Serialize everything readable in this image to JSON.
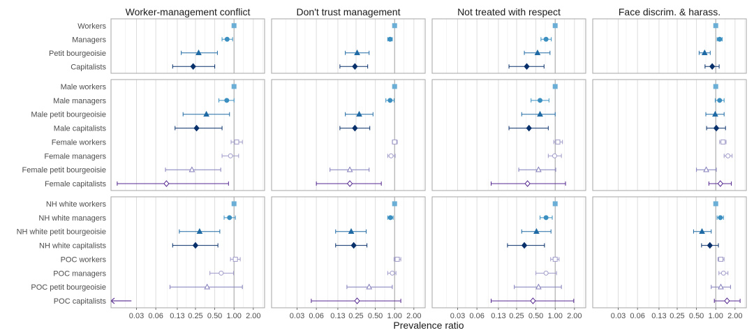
{
  "chart_data": {
    "type": "forest",
    "xlabel": "Prevalence ratio",
    "x_scale": "log",
    "xlim": [
      0.012,
      3.0
    ],
    "x_ticks": [
      {
        "value": 0.03,
        "label": "0.03"
      },
      {
        "value": 0.06,
        "label": "0.06"
      },
      {
        "value": 0.13,
        "label": "0.13"
      },
      {
        "value": 0.25,
        "label": "0.25"
      },
      {
        "value": 0.5,
        "label": "0.50"
      },
      {
        "value": 1.0,
        "label": "1.00"
      },
      {
        "value": 2.0,
        "label": "2.00"
      }
    ],
    "reference_line": 1.0,
    "grid": true,
    "colors": {
      "Workers": "#6baed6",
      "Managers": "#3a8fc0",
      "Petit bourgeoisie": "#1f6aa5",
      "Capitalists": "#08306b",
      "female_light": "#9e9ac8",
      "female_mid": "#807dba",
      "female_dark": "#54278f",
      "female_darkest": "#3f007d"
    },
    "outcomes": [
      "Worker-management conflict",
      "Don't trust management",
      "Not treated with respect",
      "Face discrim. & harass."
    ],
    "panels": [
      {
        "name": "overall",
        "groups": [
          {
            "label": "Workers",
            "shape": "square-filled",
            "color": "#6baed6",
            "estimates": [
              [
                1.0,
                1.0,
                1.0
              ],
              [
                1.0,
                1.0,
                1.0
              ],
              [
                1.0,
                1.0,
                1.0
              ],
              [
                1.0,
                1.0,
                1.0
              ]
            ]
          },
          {
            "label": "Managers",
            "shape": "circle-filled",
            "color": "#3a8fc0",
            "estimates": [
              [
                0.78,
                0.65,
                0.95
              ],
              [
                0.85,
                0.78,
                0.92
              ],
              [
                0.72,
                0.6,
                0.87
              ],
              [
                1.15,
                1.05,
                1.26
              ]
            ]
          },
          {
            "label": "Petit bourgeoisie",
            "shape": "triangle-filled",
            "color": "#1f6aa5",
            "estimates": [
              [
                0.28,
                0.15,
                0.55
              ],
              [
                0.26,
                0.17,
                0.4
              ],
              [
                0.53,
                0.33,
                0.83
              ],
              [
                0.67,
                0.55,
                0.82
              ]
            ]
          },
          {
            "label": "Capitalists",
            "shape": "diamond-filled",
            "color": "#08306b",
            "estimates": [
              [
                0.23,
                0.11,
                0.5
              ],
              [
                0.24,
                0.14,
                0.38
              ],
              [
                0.36,
                0.19,
                0.67
              ],
              [
                0.88,
                0.68,
                1.13
              ]
            ]
          }
        ]
      },
      {
        "name": "gender",
        "groups": [
          {
            "label": "Male workers",
            "shape": "square-filled",
            "color": "#6baed6",
            "estimates": [
              [
                1.0,
                1.0,
                1.0
              ],
              [
                1.0,
                1.0,
                1.0
              ],
              [
                1.0,
                1.0,
                1.0
              ],
              [
                1.0,
                1.0,
                1.0
              ]
            ]
          },
          {
            "label": "Male managers",
            "shape": "circle-filled",
            "color": "#3a8fc0",
            "estimates": [
              [
                0.77,
                0.58,
                1.0
              ],
              [
                0.85,
                0.73,
                0.98
              ],
              [
                0.58,
                0.42,
                0.8
              ],
              [
                1.15,
                0.98,
                1.35
              ]
            ]
          },
          {
            "label": "Male petit bourgeoisie",
            "shape": "triangle-filled",
            "color": "#1f6aa5",
            "estimates": [
              [
                0.37,
                0.16,
                0.85
              ],
              [
                0.28,
                0.17,
                0.46
              ],
              [
                0.58,
                0.3,
                1.0
              ],
              [
                0.98,
                0.7,
                1.35
              ]
            ]
          },
          {
            "label": "Male capitalists",
            "shape": "diamond-filled",
            "color": "#08306b",
            "estimates": [
              [
                0.26,
                0.12,
                0.65
              ],
              [
                0.24,
                0.14,
                0.41
              ],
              [
                0.39,
                0.19,
                0.78
              ],
              [
                1.02,
                0.72,
                1.42
              ]
            ]
          },
          {
            "label": "Female workers",
            "shape": "square-open",
            "color": "#9e9ac8",
            "estimates": [
              [
                1.1,
                0.9,
                1.35
              ],
              [
                1.0,
                0.92,
                1.1
              ],
              [
                1.1,
                0.95,
                1.3
              ],
              [
                1.3,
                1.15,
                1.45
              ]
            ]
          },
          {
            "label": "Female managers",
            "shape": "circle-open",
            "color": "#9e9ac8",
            "estimates": [
              [
                0.88,
                0.65,
                1.18
              ],
              [
                0.88,
                0.78,
                1.02
              ],
              [
                0.98,
                0.78,
                1.25
              ],
              [
                1.55,
                1.35,
                1.8
              ]
            ]
          },
          {
            "label": "Female petit bourgeoisie",
            "shape": "triangle-open",
            "color": "#807dba",
            "estimates": [
              [
                0.22,
                0.085,
                0.62
              ],
              [
                0.2,
                0.098,
                0.4
              ],
              [
                0.55,
                0.27,
                1.02
              ],
              [
                0.71,
                0.5,
                1.02
              ]
            ]
          },
          {
            "label": "Female capitalists",
            "shape": "diamond-open",
            "color": "#54278f",
            "estimates": [
              [
                0.088,
                0.015,
                0.82
              ],
              [
                0.2,
                0.06,
                0.62
              ],
              [
                0.37,
                0.1,
                1.45
              ],
              [
                1.18,
                0.78,
                1.75
              ]
            ]
          }
        ]
      },
      {
        "name": "race",
        "groups": [
          {
            "label": "NH white workers",
            "shape": "square-filled",
            "color": "#6baed6",
            "estimates": [
              [
                1.0,
                1.0,
                1.0
              ],
              [
                1.0,
                1.0,
                1.0
              ],
              [
                1.0,
                1.0,
                1.0
              ],
              [
                1.0,
                1.0,
                1.0
              ]
            ]
          },
          {
            "label": "NH white managers",
            "shape": "circle-filled",
            "color": "#3a8fc0",
            "estimates": [
              [
                0.85,
                0.7,
                1.05
              ],
              [
                0.86,
                0.78,
                0.95
              ],
              [
                0.72,
                0.58,
                0.9
              ],
              [
                1.18,
                1.05,
                1.32
              ]
            ]
          },
          {
            "label": "NH white petit bourgeoisie",
            "shape": "triangle-filled",
            "color": "#1f6aa5",
            "estimates": [
              [
                0.29,
                0.14,
                0.6
              ],
              [
                0.21,
                0.12,
                0.36
              ],
              [
                0.51,
                0.3,
                0.86
              ],
              [
                0.61,
                0.45,
                0.85
              ]
            ]
          },
          {
            "label": "NH white capitalists",
            "shape": "diamond-filled",
            "color": "#08306b",
            "estimates": [
              [
                0.25,
                0.11,
                0.56
              ],
              [
                0.23,
                0.12,
                0.37
              ],
              [
                0.33,
                0.18,
                0.68
              ],
              [
                0.81,
                0.6,
                1.1
              ]
            ]
          },
          {
            "label": "POC workers",
            "shape": "square-open",
            "color": "#9e9ac8",
            "estimates": [
              [
                1.05,
                0.88,
                1.25
              ],
              [
                1.1,
                0.98,
                1.25
              ],
              [
                1.0,
                0.85,
                1.15
              ],
              [
                1.2,
                1.08,
                1.35
              ]
            ]
          },
          {
            "label": "POC managers",
            "shape": "circle-open",
            "color": "#9e9ac8",
            "estimates": [
              [
                0.63,
                0.42,
                0.98
              ],
              [
                0.92,
                0.78,
                1.05
              ],
              [
                0.72,
                0.5,
                1.05
              ],
              [
                1.32,
                1.12,
                1.55
              ]
            ]
          },
          {
            "label": "POC petit bourgeoisie",
            "shape": "triangle-open",
            "color": "#807dba",
            "estimates": [
              [
                0.38,
                0.1,
                1.35
              ],
              [
                0.4,
                0.18,
                0.92
              ],
              [
                0.55,
                0.23,
                1.25
              ],
              [
                1.2,
                0.85,
                1.7
              ]
            ]
          },
          {
            "label": "POC capitalists",
            "shape": "diamond-open",
            "color": "#54278f",
            "estimates": [
              [
                "offscale-left",
                0.012,
                0.025
              ],
              [
                0.26,
                0.05,
                1.25
              ],
              [
                0.45,
                0.1,
                1.95
              ],
              [
                1.5,
                0.95,
                2.4
              ]
            ]
          }
        ]
      }
    ]
  }
}
